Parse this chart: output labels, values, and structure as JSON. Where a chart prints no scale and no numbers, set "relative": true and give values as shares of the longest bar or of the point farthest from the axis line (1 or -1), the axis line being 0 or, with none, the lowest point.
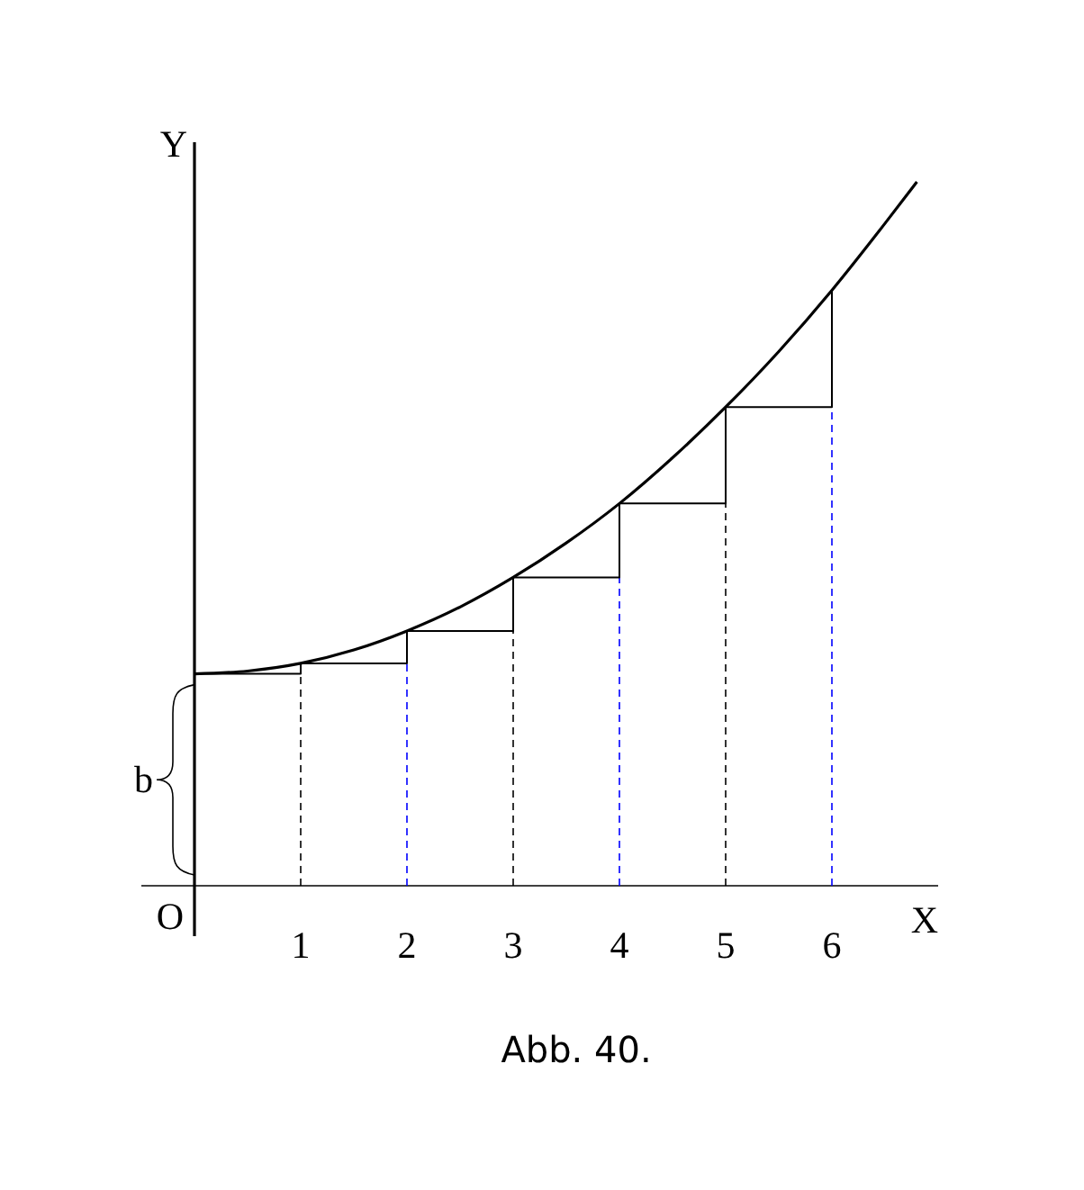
{
  "chart_data": {
    "type": "line",
    "relative": true,
    "xlabel": "X",
    "ylabel": "Y",
    "xlim": [
      -0.5,
      7
    ],
    "xticks": [
      1,
      2,
      3,
      4,
      5,
      6
    ],
    "series": [
      {
        "color": "#000000",
        "x": [
          0,
          0.5,
          1,
          1.5,
          2,
          2.5,
          3,
          3.5,
          4,
          4.5,
          5,
          5.5,
          6,
          6.5,
          6.8
        ],
        "values": [
          0.301,
          0.305,
          0.316,
          0.335,
          0.362,
          0.396,
          0.438,
          0.487,
          0.543,
          0.608,
          0.68,
          0.759,
          0.846,
          0.941,
          1.0
        ]
      },
      {
        "type": "step",
        "color": "#000000",
        "x": [
          0,
          1,
          2,
          3,
          4,
          5,
          6
        ],
        "values": [
          0.301,
          0.316,
          0.362,
          0.438,
          0.543,
          0.68,
          0.846
        ]
      }
    ],
    "ref_lines": [
      {
        "axis": "x",
        "value": 1,
        "color": "#000000",
        "line_style": "dashed"
      },
      {
        "axis": "x",
        "value": 2,
        "color": "#0000ff",
        "line_style": "dashed"
      },
      {
        "axis": "x",
        "value": 3,
        "color": "#000000",
        "line_style": "dashed"
      },
      {
        "axis": "x",
        "value": 4,
        "color": "#0000ff",
        "line_style": "dashed"
      },
      {
        "axis": "x",
        "value": 5,
        "color": "#000000",
        "line_style": "dashed"
      },
      {
        "axis": "x",
        "value": 6,
        "color": "#0000ff",
        "line_style": "dashed"
      }
    ],
    "annotations": [
      "O",
      "b",
      "Abb. 40."
    ]
  }
}
